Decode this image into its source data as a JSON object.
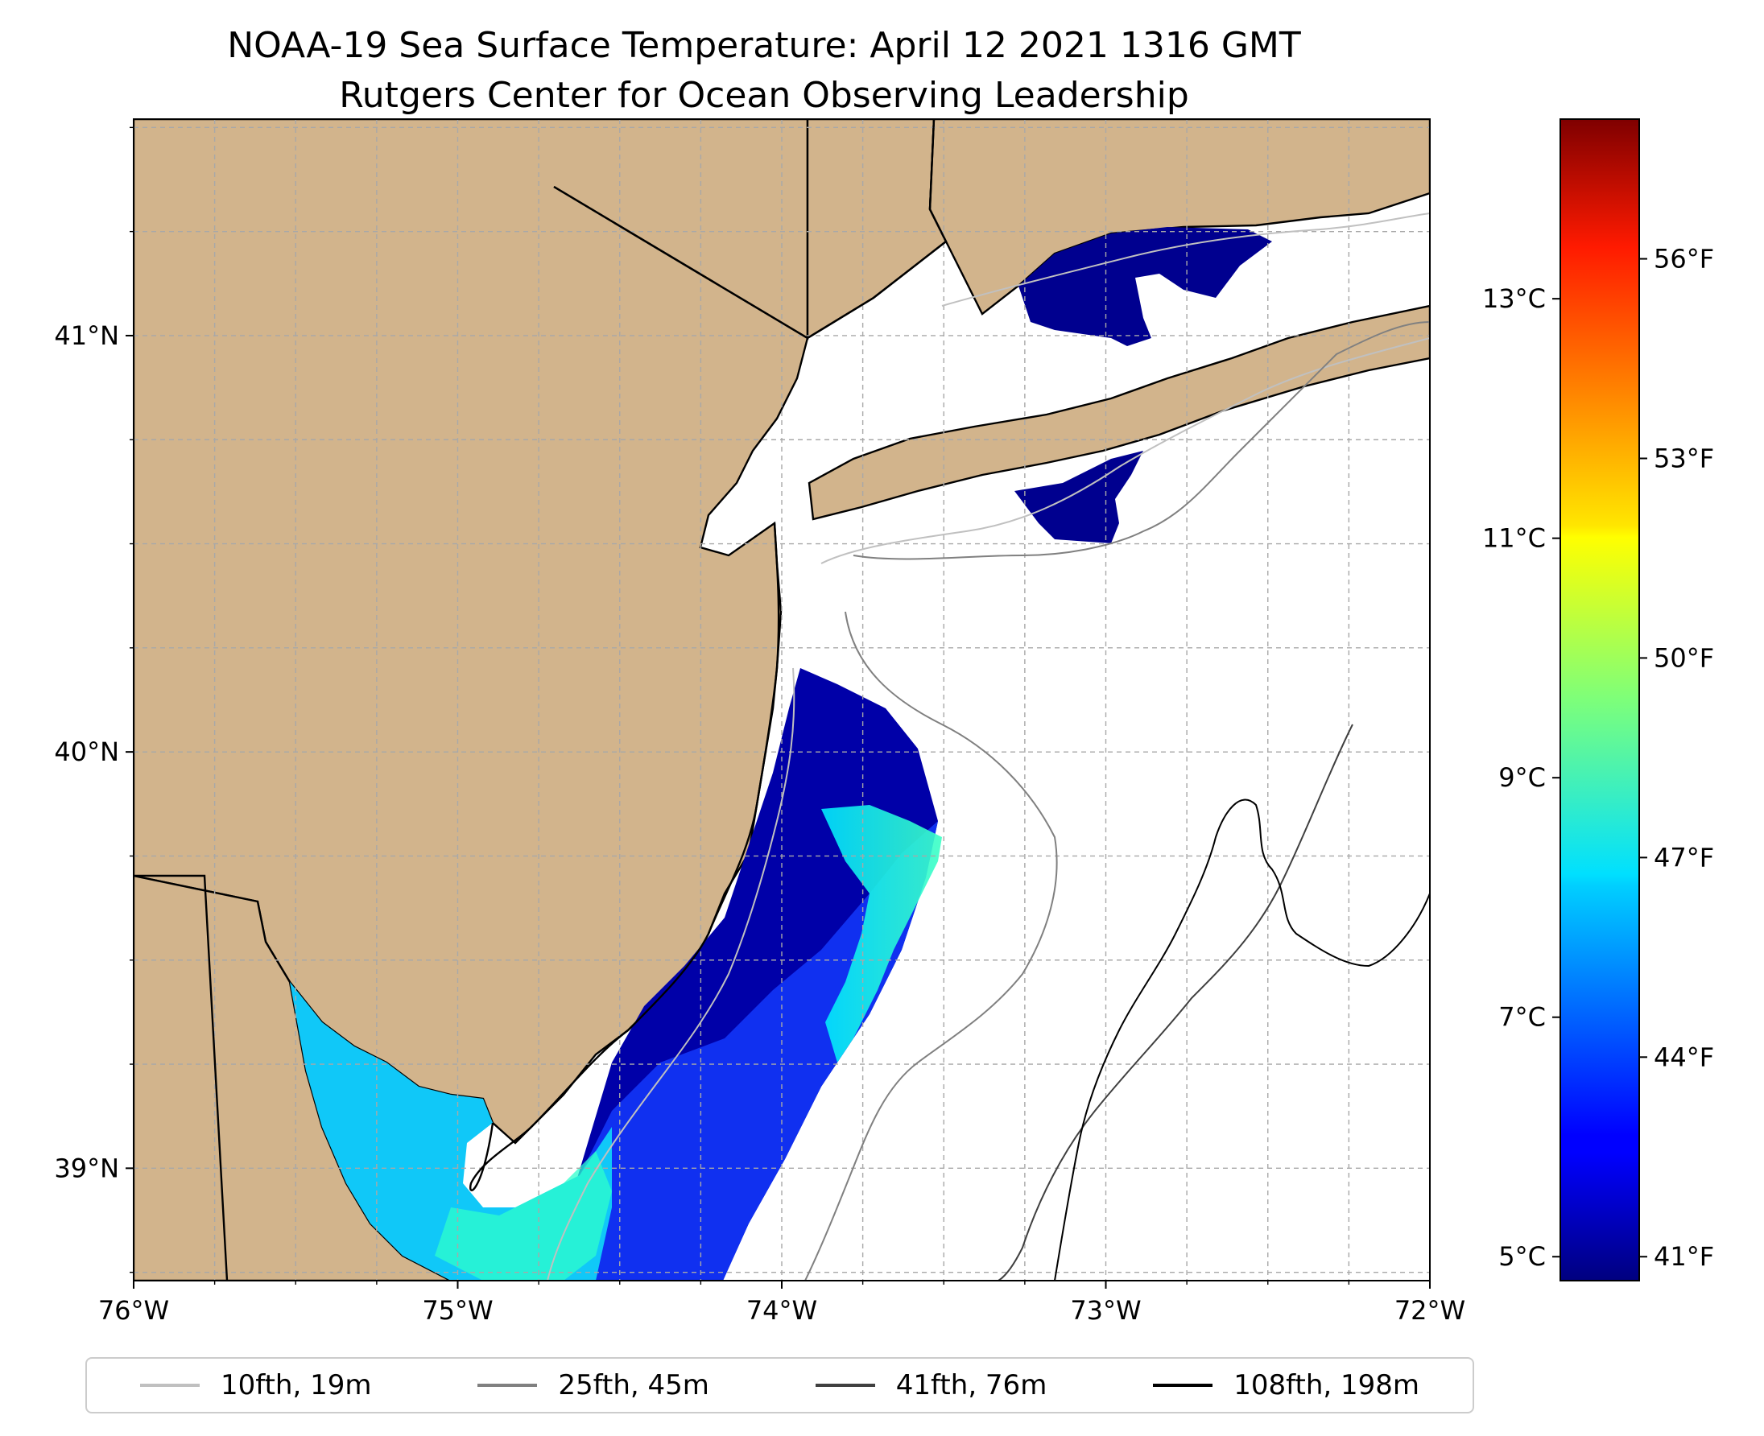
{
  "title": {
    "line1": "NOAA-19 Sea Surface Temperature: April 12 2021 1316 GMT",
    "line2": "Rutgers Center for Ocean Observing Leadership"
  },
  "map": {
    "lon_range": [
      -76,
      -72
    ],
    "lat_range": [
      38.73,
      41.52
    ],
    "lon_ticks": [
      "76°W",
      "75°W",
      "74°W",
      "73°W",
      "72°W"
    ],
    "lat_ticks": [
      "39°N",
      "40°N",
      "41°N"
    ],
    "land_color": "#d2b48c",
    "gridlines": true
  },
  "colorbar": {
    "colormap": "jet",
    "range_c": [
      4.8,
      14.5
    ],
    "celsius_ticks": [
      "5°C",
      "7°C",
      "9°C",
      "11°C",
      "13°C"
    ],
    "fahrenheit_ticks": [
      "41°F",
      "44°F",
      "47°F",
      "50°F",
      "53°F",
      "56°F"
    ]
  },
  "legend": {
    "items": [
      {
        "label": "10fth, 19m",
        "color": "#c0c0c0"
      },
      {
        "label": "25fth, 45m",
        "color": "#808080"
      },
      {
        "label": "41fth, 76m",
        "color": "#404040"
      },
      {
        "label": "108fth, 198m",
        "color": "#000000"
      }
    ]
  }
}
